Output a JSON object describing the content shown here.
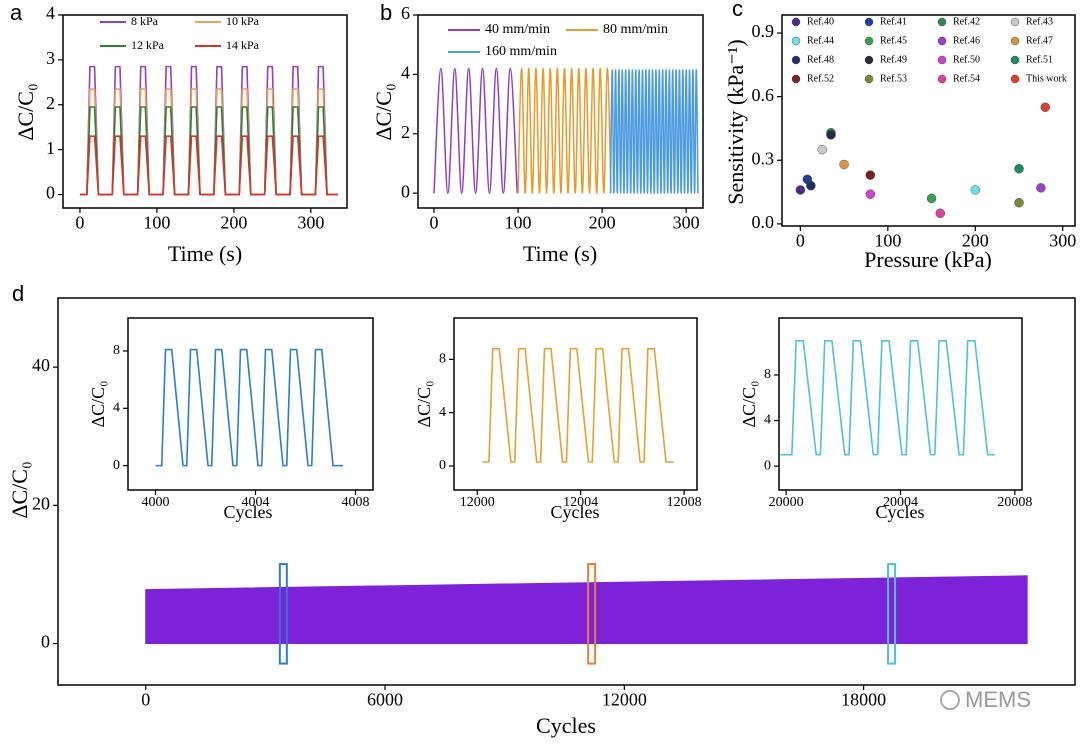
{
  "watermark": "MEMS",
  "chart_data": [
    {
      "type": "line",
      "panel": "a",
      "x_label": "Time (s)",
      "y_label": "ΔC/C₀",
      "xlim": [
        -22,
        347
      ],
      "xticks": [
        0,
        100,
        200,
        300
      ],
      "ylim": [
        -0.3,
        4
      ],
      "yticks": [
        0,
        1,
        2,
        3,
        4
      ],
      "x": [
        0,
        9,
        13,
        19,
        24,
        42,
        46,
        52,
        57,
        75,
        79,
        85,
        90,
        108,
        112,
        118,
        123,
        141,
        145,
        151,
        156,
        174,
        178,
        184,
        189,
        207,
        211,
        217,
        222,
        240,
        244,
        250,
        255,
        273,
        277,
        283,
        288,
        306,
        310,
        316,
        321,
        335
      ],
      "series": [
        {
          "name": "8 kPa",
          "color": "#8b3fd0",
          "values": [
            0,
            0,
            2.85,
            2.85,
            0,
            0,
            2.85,
            2.85,
            0,
            0,
            2.85,
            2.85,
            0,
            0,
            2.85,
            2.85,
            0,
            0,
            2.85,
            2.85,
            0,
            0,
            2.85,
            2.85,
            0,
            0,
            2.85,
            2.85,
            0,
            0,
            2.85,
            2.85,
            0,
            0,
            2.85,
            2.85,
            0,
            0,
            2.85,
            2.85,
            0,
            0
          ]
        },
        {
          "name": "10 kPa",
          "color": "#f0a050",
          "values": [
            0,
            0,
            2.35,
            2.35,
            0,
            0,
            2.35,
            2.35,
            0,
            0,
            2.35,
            2.35,
            0,
            0,
            2.35,
            2.35,
            0,
            0,
            2.35,
            2.35,
            0,
            0,
            2.35,
            2.35,
            0,
            0,
            2.35,
            2.35,
            0,
            0,
            2.35,
            2.35,
            0,
            0,
            2.35,
            2.35,
            0,
            0,
            2.35,
            2.35,
            0,
            0
          ]
        },
        {
          "name": "12 kPa",
          "color": "#2e7d32",
          "values": [
            0,
            0,
            1.95,
            1.95,
            0,
            0,
            1.95,
            1.95,
            0,
            0,
            1.95,
            1.95,
            0,
            0,
            1.95,
            1.95,
            0,
            0,
            1.95,
            1.95,
            0,
            0,
            1.95,
            1.95,
            0,
            0,
            1.95,
            1.95,
            0,
            0,
            1.95,
            1.95,
            0,
            0,
            1.95,
            1.95,
            0,
            0,
            1.95,
            1.95,
            0,
            0
          ]
        },
        {
          "name": "14 kPa",
          "color": "#d9342b",
          "values": [
            0,
            0,
            1.3,
            1.3,
            0,
            0,
            1.3,
            1.3,
            0,
            0,
            1.3,
            1.3,
            0,
            0,
            1.3,
            1.3,
            0,
            0,
            1.3,
            1.3,
            0,
            0,
            1.3,
            1.3,
            0,
            0,
            1.3,
            1.3,
            0,
            0,
            1.3,
            1.3,
            0,
            0,
            1.3,
            1.3,
            0,
            0,
            1.3,
            1.3,
            0,
            0
          ]
        }
      ]
    },
    {
      "type": "line",
      "panel": "b",
      "x_label": "Time (s)",
      "y_label": "ΔC/C₀",
      "xlim": [
        -19,
        320
      ],
      "xticks": [
        0,
        100,
        200,
        300
      ],
      "ylim": [
        -0.5,
        6
      ],
      "yticks": [
        0,
        2,
        4,
        6
      ],
      "series": [
        {
          "name": "40 mm/min",
          "color": "#8a3fc4",
          "x": [
            0,
            8.25,
            16.5,
            24.75,
            33,
            41.25,
            49.5,
            57.75,
            66,
            74.25,
            82.5,
            90.75,
            99
          ],
          "values": [
            0,
            4.2,
            0,
            4.2,
            0,
            4.2,
            0,
            4.2,
            0,
            4.2,
            0,
            4.2,
            0
          ]
        },
        {
          "name": "80 mm/min",
          "color": "#e89a2c",
          "x": [
            100,
            104.25,
            108.5,
            112.75,
            117,
            121.25,
            125.5,
            129.75,
            134,
            138.25,
            142.5,
            146.75,
            151,
            155.25,
            159.5,
            163.75,
            168,
            172.25,
            176.5,
            180.75,
            185,
            189.25,
            193.5,
            197.75,
            202,
            206.25,
            210.5
          ],
          "values": [
            0,
            4.2,
            0,
            4.2,
            0,
            4.2,
            0,
            4.2,
            0,
            4.2,
            0,
            4.2,
            0,
            4.2,
            0,
            4.2,
            0,
            4.2,
            0,
            4.2,
            0,
            4.2,
            0,
            4.2,
            0,
            4.2,
            0
          ]
        },
        {
          "name": "160 mm/min",
          "color": "#4a9be0",
          "x": [
            210,
            212,
            214,
            216,
            218,
            220,
            222,
            224,
            226,
            228,
            230,
            232,
            234,
            236,
            238,
            240,
            242,
            244,
            246,
            248,
            250,
            252,
            254,
            256,
            258,
            260,
            262,
            264,
            266,
            268,
            270,
            272,
            274,
            276,
            278,
            280,
            282,
            284,
            286,
            288,
            290,
            292,
            294,
            296,
            298,
            300,
            302,
            304,
            306,
            308,
            310,
            312,
            314
          ],
          "values": [
            0,
            4.15,
            0,
            4.15,
            0,
            4.15,
            0,
            4.15,
            0,
            4.15,
            0,
            4.15,
            0,
            4.15,
            0,
            4.15,
            0,
            4.15,
            0,
            4.15,
            0,
            4.15,
            0,
            4.15,
            0,
            4.15,
            0,
            4.15,
            0,
            4.15,
            0,
            4.15,
            0,
            4.15,
            0,
            4.15,
            0,
            4.15,
            0,
            4.15,
            0,
            4.15,
            0,
            4.15,
            0,
            4.15,
            0,
            4.15,
            0,
            4.15,
            0,
            4.15,
            0
          ]
        }
      ]
    },
    {
      "type": "scatter",
      "panel": "c",
      "x_label": "Pressure (kPa)",
      "y_label": "Sensitivity (kPa⁻¹)",
      "xlim": [
        -21,
        314
      ],
      "xticks": [
        0,
        100,
        200,
        300
      ],
      "ylim": [
        -0.01,
        0.985
      ],
      "yticks": [
        {
          "value": 0,
          "label": "0.0"
        },
        0.3,
        0.6,
        0.9
      ],
      "series": [
        {
          "name": "Ref.40",
          "color": "#4b2a8a",
          "x": [
            0
          ],
          "values": [
            0.16
          ]
        },
        {
          "name": "Ref.41",
          "color": "#2a3a9a",
          "x": [
            8
          ],
          "values": [
            0.21
          ]
        },
        {
          "name": "Ref.42",
          "color": "#2e8b57",
          "x": [
            35
          ],
          "values": [
            0.43
          ]
        },
        {
          "name": "Ref.43",
          "color": "#c8c8c8",
          "x": [
            25
          ],
          "values": [
            0.35
          ]
        },
        {
          "name": "Ref.44",
          "color": "#6de0e8",
          "x": [
            200
          ],
          "values": [
            0.16
          ]
        },
        {
          "name": "Ref.45",
          "color": "#3aa050",
          "x": [
            150
          ],
          "values": [
            0.12
          ]
        },
        {
          "name": "Ref.46",
          "color": "#9b40c8",
          "x": [
            275
          ],
          "values": [
            0.17
          ]
        },
        {
          "name": "Ref.47",
          "color": "#e09040",
          "x": [
            50
          ],
          "values": [
            0.28
          ]
        },
        {
          "name": "Ref.48",
          "color": "#22306a",
          "x": [
            12
          ],
          "values": [
            0.18
          ]
        },
        {
          "name": "Ref.49",
          "color": "#2a2a40",
          "x": [
            35
          ],
          "values": [
            0.42
          ]
        },
        {
          "name": "Ref.50",
          "color": "#d040d8",
          "x": [
            80
          ],
          "values": [
            0.14
          ]
        },
        {
          "name": "Ref.51",
          "color": "#1e8a60",
          "x": [
            250
          ],
          "values": [
            0.26
          ]
        },
        {
          "name": "Ref.52",
          "color": "#7a1f2a",
          "x": [
            80
          ],
          "values": [
            0.23
          ]
        },
        {
          "name": "Ref.53",
          "color": "#7a8a30",
          "x": [
            250
          ],
          "values": [
            0.1
          ]
        },
        {
          "name": "Ref.54",
          "color": "#e040a0",
          "x": [
            160
          ],
          "values": [
            0.05
          ]
        },
        {
          "name": "This work",
          "color": "#e04030",
          "x": [
            280
          ],
          "values": [
            0.55
          ]
        }
      ]
    },
    {
      "type": "area",
      "panel": "d",
      "x_label": "Cycles",
      "y_label": "ΔC/C₀",
      "xlim": [
        -2200,
        23300
      ],
      "xticks": [
        0,
        6000,
        12000,
        18000
      ],
      "ylim": [
        -6,
        50
      ],
      "yticks": [
        0,
        20,
        40
      ],
      "x": [
        0,
        22100
      ],
      "series": [
        {
          "color": "#7d22d8",
          "values": [
            7.8,
            9.8
          ]
        }
      ],
      "highlights": [
        {
          "x": 3450,
          "ymin": -2.9,
          "ymax": 11.5,
          "color": "#2a7fc8"
        },
        {
          "x": 11180,
          "ymin": -2.9,
          "ymax": 11.5,
          "color": "#e8803a"
        },
        {
          "x": 18700,
          "ymin": -2.9,
          "ymax": 11.5,
          "color": "#4cc3d9"
        }
      ]
    },
    {
      "type": "line",
      "x_label": "Cycles",
      "y_label": "ΔC/C₀",
      "xlim": [
        3998.9,
        4008.7
      ],
      "xticks": [
        4000,
        4004,
        4008
      ],
      "ylim": [
        -1.7,
        10.3
      ],
      "yticks": [
        0,
        4,
        8
      ],
      "x": [
        4000,
        4000.25,
        4000.4,
        4000.65,
        4001.1,
        4001.25,
        4001.4,
        4001.65,
        4002.1,
        4002.25,
        4002.4,
        4002.65,
        4003.1,
        4003.25,
        4003.4,
        4003.65,
        4004.1,
        4004.25,
        4004.4,
        4004.65,
        4005.1,
        4005.25,
        4005.4,
        4005.65,
        4006.1,
        4006.25,
        4006.4,
        4006.65,
        4007.1,
        4007.5
      ],
      "series": [
        {
          "color": "#2a7fc8",
          "values": [
            0,
            0,
            8.1,
            8.1,
            0,
            0,
            8.1,
            8.1,
            0,
            0,
            8.1,
            8.1,
            0,
            0,
            8.1,
            8.1,
            0,
            0,
            8.1,
            8.1,
            0,
            0,
            8.1,
            8.1,
            0,
            0,
            8.1,
            8.1,
            0,
            0
          ]
        }
      ]
    },
    {
      "type": "line",
      "x_label": "Cycles",
      "y_label": "ΔC/C₀",
      "xlim": [
        11999.1,
        12008.5
      ],
      "xticks": [
        12000,
        12004,
        12008
      ],
      "ylim": [
        -1.8,
        11.1
      ],
      "yticks": [
        0,
        4,
        8
      ],
      "x": [
        12000.2,
        12000.45,
        12000.6,
        12000.85,
        12001.3,
        12001.45,
        12001.6,
        12001.85,
        12002.3,
        12002.45,
        12002.6,
        12002.85,
        12003.3,
        12003.45,
        12003.6,
        12003.85,
        12004.3,
        12004.45,
        12004.6,
        12004.85,
        12005.3,
        12005.45,
        12005.6,
        12005.85,
        12006.3,
        12006.45,
        12006.6,
        12006.85,
        12007.3,
        12007.6
      ],
      "series": [
        {
          "color": "#e8a030",
          "values": [
            0.3,
            0.3,
            8.8,
            8.8,
            0.3,
            0.3,
            8.8,
            8.8,
            0.3,
            0.3,
            8.8,
            8.8,
            0.3,
            0.3,
            8.8,
            8.8,
            0.3,
            0.3,
            8.8,
            8.8,
            0.3,
            0.3,
            8.8,
            8.8,
            0.3,
            0.3,
            8.8,
            8.8,
            0.3,
            0.3
          ]
        }
      ]
    },
    {
      "type": "line",
      "x_label": "Cycles",
      "y_label": "ΔC/C₀",
      "xlim": [
        19999.75,
        20008.25
      ],
      "xticks": [
        20000,
        20004,
        20008
      ],
      "ylim": [
        -2.1,
        13
      ],
      "yticks": [
        0,
        4,
        8
      ],
      "x": [
        19999.8,
        20000.2,
        20000.35,
        20000.6,
        20001.05,
        20001.2,
        20001.35,
        20001.6,
        20002.05,
        20002.2,
        20002.35,
        20002.6,
        20003.05,
        20003.2,
        20003.35,
        20003.6,
        20004.05,
        20004.2,
        20004.35,
        20004.6,
        20005.05,
        20005.2,
        20005.35,
        20005.6,
        20006.05,
        20006.2,
        20006.35,
        20006.6,
        20007.05,
        20007.3
      ],
      "series": [
        {
          "color": "#4cc3d9",
          "values": [
            1,
            1,
            11,
            11,
            1,
            1,
            11,
            11,
            1,
            1,
            11,
            11,
            1,
            1,
            11,
            11,
            1,
            1,
            11,
            11,
            1,
            1,
            11,
            11,
            1,
            1,
            11,
            11,
            1,
            1
          ]
        }
      ]
    }
  ]
}
